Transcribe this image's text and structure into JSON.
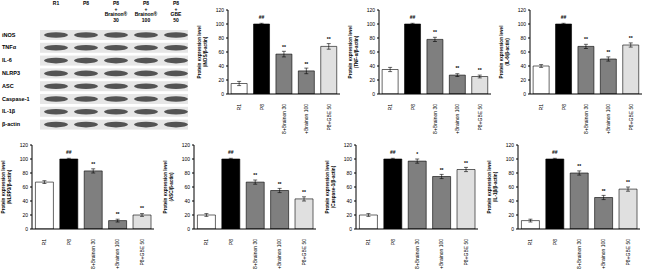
{
  "blot": {
    "lanes": [
      "R1",
      "P8",
      "P8 + Brainon® 30",
      "P8 + Brainon® 100",
      "P8 + GBE 50"
    ],
    "rows": [
      "iNOS",
      "TNFα",
      "IL-6",
      "NLRP3",
      "ASC",
      "Caspase-1",
      "IL-1β",
      "β-actin"
    ]
  },
  "chart_data": [
    {
      "type": "bar",
      "y_label": "Protein expression level (iNOS/β-actin)",
      "categories": [
        "R1",
        "P8",
        "P8+Brainon 30",
        "P8+Brainon 100",
        "P8+GBE 50"
      ],
      "values": [
        15,
        100,
        57,
        33,
        68
      ],
      "errors": [
        3,
        1,
        4,
        4,
        4
      ],
      "significance": [
        null,
        "##",
        "**",
        "**",
        "**"
      ],
      "colors": [
        "#ffffff",
        "#000000",
        "#7f7f7f",
        "#7f7f7f",
        "#e0e0e0"
      ],
      "ylim": [
        0,
        120
      ],
      "yticks": [
        0,
        20,
        40,
        60,
        80,
        100,
        120
      ]
    },
    {
      "type": "bar",
      "y_label": "Protein expression level (TNF-α/β-actin)",
      "categories": [
        "R1",
        "P8",
        "P8+Brainon 30",
        "P8+Brainon 100",
        "P8+GBE 50"
      ],
      "values": [
        35,
        100,
        78,
        27,
        25
      ],
      "errors": [
        3,
        1,
        3,
        2,
        2
      ],
      "significance": [
        null,
        "##",
        "**",
        "**",
        "**"
      ],
      "colors": [
        "#ffffff",
        "#000000",
        "#7f7f7f",
        "#7f7f7f",
        "#e0e0e0"
      ],
      "ylim": [
        0,
        120
      ],
      "yticks": [
        0,
        20,
        40,
        60,
        80,
        100,
        120
      ]
    },
    {
      "type": "bar",
      "y_label": "Protein expression level (IL-6/β-actin)",
      "categories": [
        "R1",
        "P8",
        "P8+Brainon 30",
        "P8+Brainon 100",
        "P8+GBE 50"
      ],
      "values": [
        40,
        100,
        68,
        50,
        70
      ],
      "errors": [
        2,
        1,
        3,
        3,
        3
      ],
      "significance": [
        null,
        "##",
        "**",
        "**",
        "**"
      ],
      "colors": [
        "#ffffff",
        "#000000",
        "#7f7f7f",
        "#7f7f7f",
        "#e0e0e0"
      ],
      "ylim": [
        0,
        120
      ],
      "yticks": [
        0,
        20,
        40,
        60,
        80,
        100,
        120
      ]
    },
    {
      "type": "bar",
      "y_label": "Protein expression level (NLRP3/β-actin)",
      "categories": [
        "R1",
        "P8",
        "P8+Brainon 30",
        "P8+Brainon 100",
        "P8+GBE 50"
      ],
      "values": [
        67,
        100,
        83,
        12,
        20
      ],
      "errors": [
        2,
        1,
        3,
        2,
        2
      ],
      "significance": [
        null,
        "##",
        "**",
        "**",
        "**"
      ],
      "colors": [
        "#ffffff",
        "#000000",
        "#7f7f7f",
        "#7f7f7f",
        "#e0e0e0"
      ],
      "ylim": [
        0,
        120
      ],
      "yticks": [
        0,
        20,
        40,
        60,
        80,
        100,
        120
      ]
    },
    {
      "type": "bar",
      "y_label": "Protein expression level (ASC/β-actin)",
      "categories": [
        "R1",
        "P8",
        "P8+Brainon 30",
        "P8+Brainon 100",
        "P8+GBE 50"
      ],
      "values": [
        20,
        100,
        67,
        55,
        43
      ],
      "errors": [
        2,
        1,
        3,
        3,
        3
      ],
      "significance": [
        null,
        "##",
        "**",
        "**",
        "**"
      ],
      "colors": [
        "#ffffff",
        "#000000",
        "#7f7f7f",
        "#7f7f7f",
        "#e0e0e0"
      ],
      "ylim": [
        0,
        120
      ],
      "yticks": [
        0,
        20,
        40,
        60,
        80,
        100,
        120
      ]
    },
    {
      "type": "bar",
      "y_label": "Protein expression level (Caspase-1/β-actin)",
      "categories": [
        "R1",
        "P8",
        "P8+Brainon 30",
        "P8+Brainon 100",
        "P8+GBE 50"
      ],
      "values": [
        20,
        100,
        97,
        75,
        85
      ],
      "errors": [
        2,
        1,
        3,
        3,
        3
      ],
      "significance": [
        null,
        "##",
        "*",
        "**",
        "**"
      ],
      "colors": [
        "#ffffff",
        "#000000",
        "#7f7f7f",
        "#7f7f7f",
        "#e0e0e0"
      ],
      "ylim": [
        0,
        120
      ],
      "yticks": [
        0,
        20,
        40,
        60,
        80,
        100,
        120
      ]
    },
    {
      "type": "bar",
      "y_label": "Protein expression level (IL-1β/β-actin)",
      "categories": [
        "R1",
        "P8",
        "P8+Brainon 30",
        "P8+Brainon 100",
        "P8+GBE 50"
      ],
      "values": [
        12,
        100,
        80,
        45,
        57
      ],
      "errors": [
        2,
        1,
        3,
        3,
        3
      ],
      "significance": [
        null,
        "##",
        "**",
        "**",
        "**"
      ],
      "colors": [
        "#ffffff",
        "#000000",
        "#7f7f7f",
        "#7f7f7f",
        "#e0e0e0"
      ],
      "ylim": [
        0,
        120
      ],
      "yticks": [
        0,
        20,
        40,
        60,
        80,
        100,
        120
      ]
    }
  ]
}
